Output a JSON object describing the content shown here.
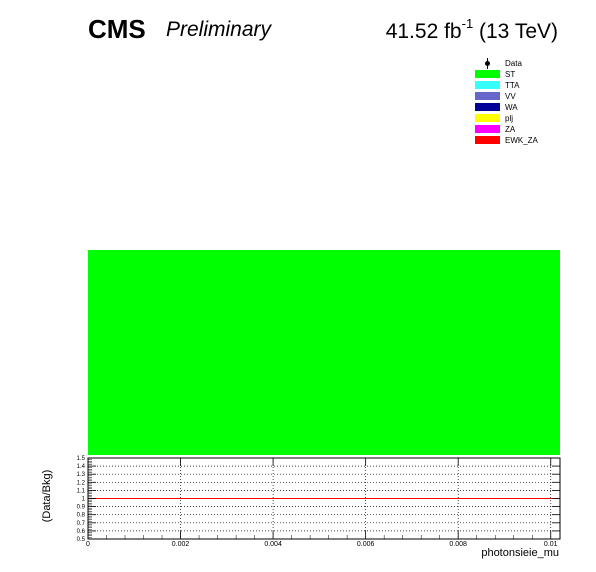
{
  "header": {
    "experiment": "CMS",
    "status": "Preliminary",
    "lumi_value": "41.52 fb",
    "lumi_exp": "-1",
    "energy": " (13 TeV)"
  },
  "legend": {
    "entries": [
      {
        "label": "Data",
        "color": "#000000",
        "marker": "point"
      },
      {
        "label": "ST",
        "color": "#00ff00"
      },
      {
        "label": "TTA",
        "color": "#33ffff"
      },
      {
        "label": "VV",
        "color": "#6666cc"
      },
      {
        "label": "WA",
        "color": "#000099"
      },
      {
        "label": "plj",
        "color": "#ffff00"
      },
      {
        "label": "ZA",
        "color": "#ff00ff"
      },
      {
        "label": "EWK_ZA",
        "color": "#ff0000"
      }
    ]
  },
  "chart_data": [
    {
      "type": "area",
      "series": [
        {
          "name": "ST",
          "color": "#00ff00",
          "x": [
            0,
            0.01
          ],
          "values": [
            1,
            1
          ]
        }
      ],
      "xlim": [
        0,
        0.01
      ],
      "note_fill_fraction": 0.82
    },
    {
      "type": "line",
      "ylabel": "(Data/Bkg)",
      "xlabel": "photonsieie_mu",
      "xlim": [
        0,
        0.0102
      ],
      "ylim": [
        0.5,
        1.5
      ],
      "x_ticks": [
        "0",
        "0.002",
        "0.004",
        "0.006",
        "0.008",
        "0.01"
      ],
      "x_tick_values": [
        0,
        0.002,
        0.004,
        0.006,
        0.008,
        0.01
      ],
      "y_ticks": [
        "0.5",
        "0.6",
        "0.7",
        "0.8",
        "0.9",
        "1",
        "1.1",
        "1.2",
        "1.3",
        "1.4",
        "1.5"
      ],
      "y_tick_values": [
        0.5,
        0.6,
        0.7,
        0.8,
        0.9,
        1.0,
        1.1,
        1.2,
        1.3,
        1.4,
        1.5
      ],
      "grid": true,
      "series": [
        {
          "color": "#ff0000",
          "x": [
            0,
            0.0102
          ],
          "values": [
            1,
            1
          ]
        }
      ]
    }
  ]
}
